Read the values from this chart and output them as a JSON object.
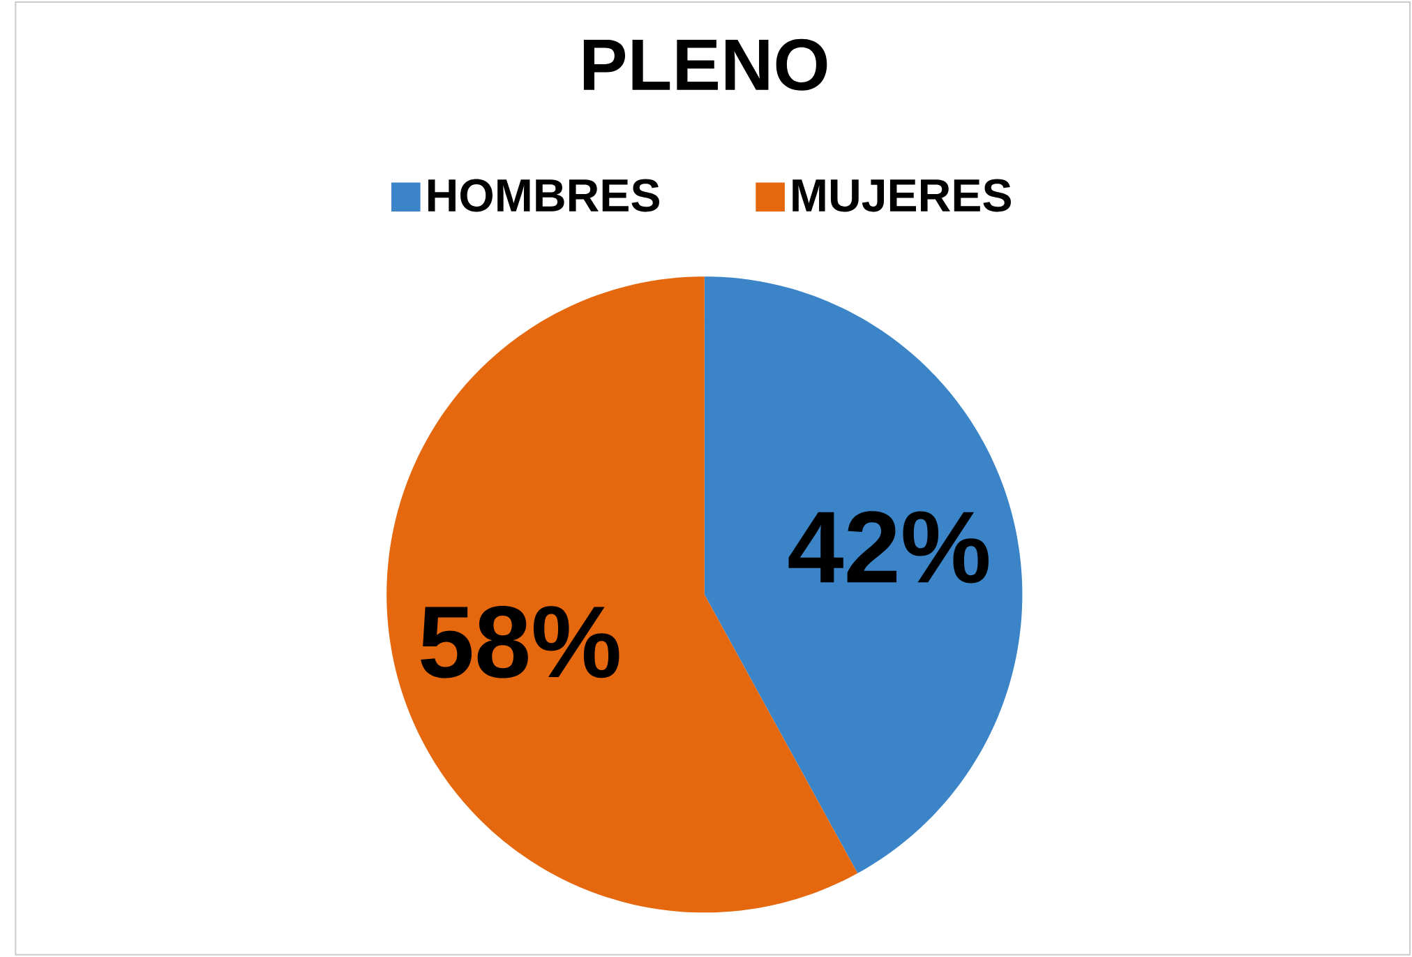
{
  "chart_data": {
    "type": "pie",
    "title": "PLENO",
    "categories": [
      "HOMBRES",
      "MUJERES"
    ],
    "values": [
      42,
      58
    ],
    "colors": [
      "#3b84c8",
      "#e5680f"
    ],
    "value_labels": [
      "42%",
      "58%"
    ],
    "legend": "top"
  }
}
